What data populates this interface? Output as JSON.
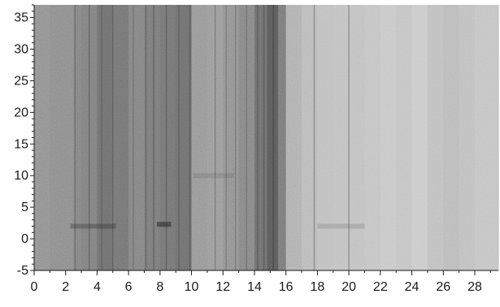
{
  "chart_data": {
    "type": "heatmap",
    "title": "",
    "xlabel": "",
    "ylabel": "",
    "xlim": [
      0,
      29.5
    ],
    "ylim": [
      -5,
      37
    ],
    "x_ticks": [
      0,
      2,
      4,
      6,
      8,
      10,
      12,
      14,
      16,
      18,
      20,
      22,
      24,
      26,
      28
    ],
    "x_tick_labels": [
      "0",
      "2",
      "4",
      "6",
      "8",
      "10",
      "12",
      "14",
      "16",
      "18",
      "20",
      "22",
      "24",
      "26",
      "28"
    ],
    "y_ticks": [
      -5,
      0,
      5,
      10,
      15,
      20,
      25,
      30,
      35
    ],
    "y_tick_labels": [
      "-5",
      "0",
      "5",
      "10",
      "15",
      "20",
      "25",
      "30",
      "35"
    ],
    "grid": false,
    "colormap": "grayscale",
    "brightness_profile": {
      "x": [
        0,
        1,
        2,
        2.5,
        3,
        4,
        5,
        6,
        7,
        8,
        9,
        10,
        11,
        12,
        13,
        14,
        14.8,
        15.5,
        16,
        17,
        18,
        19,
        20,
        21,
        22,
        23,
        24,
        25,
        26,
        27,
        28,
        29.5
      ],
      "level": [
        0.52,
        0.5,
        0.5,
        0.47,
        0.46,
        0.4,
        0.42,
        0.47,
        0.44,
        0.42,
        0.4,
        0.55,
        0.56,
        0.52,
        0.48,
        0.4,
        0.33,
        0.44,
        0.66,
        0.7,
        0.72,
        0.73,
        0.73,
        0.74,
        0.76,
        0.74,
        0.77,
        0.72,
        0.7,
        0.72,
        0.74,
        0.75
      ]
    },
    "vertical_streaks": [
      {
        "x": 2.6,
        "intensity": 0.25
      },
      {
        "x": 3.5,
        "intensity": 0.3
      },
      {
        "x": 4.3,
        "intensity": 0.2
      },
      {
        "x": 5.0,
        "intensity": 0.22
      },
      {
        "x": 6.3,
        "intensity": 0.18
      },
      {
        "x": 7.1,
        "intensity": 0.25
      },
      {
        "x": 7.6,
        "intensity": 0.3
      },
      {
        "x": 8.4,
        "intensity": 0.28
      },
      {
        "x": 9.2,
        "intensity": 0.22
      },
      {
        "x": 9.9,
        "intensity": 0.3
      },
      {
        "x": 11.5,
        "intensity": 0.25
      },
      {
        "x": 12.2,
        "intensity": 0.2
      },
      {
        "x": 12.8,
        "intensity": 0.22
      },
      {
        "x": 13.5,
        "intensity": 0.2
      },
      {
        "x": 14.2,
        "intensity": 0.25
      },
      {
        "x": 14.6,
        "intensity": 0.3
      },
      {
        "x": 15.2,
        "intensity": 0.35
      },
      {
        "x": 17.8,
        "intensity": 0.3
      },
      {
        "x": 20.0,
        "intensity": 0.3
      }
    ],
    "horizontal_features": [
      {
        "x_start": 2.3,
        "x_end": 5.2,
        "y": 2,
        "intensity": 0.25
      },
      {
        "x_start": 7.8,
        "x_end": 8.7,
        "y": 2.3,
        "intensity": 0.45
      },
      {
        "x_start": 10.1,
        "x_end": 12.7,
        "y": 10,
        "intensity": 0.1
      },
      {
        "x_start": 18.0,
        "x_end": 21.0,
        "y": 2,
        "intensity": 0.12
      }
    ]
  }
}
